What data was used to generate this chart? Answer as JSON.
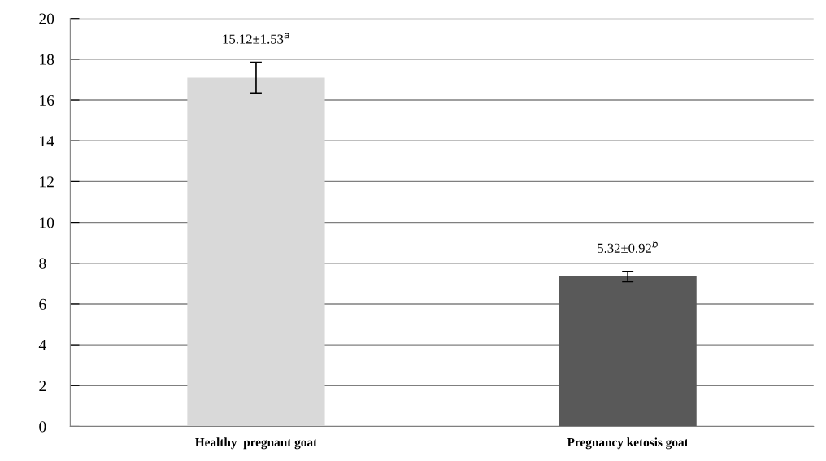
{
  "chart_data": {
    "type": "bar",
    "categories": [
      "Healthy  pregnant goat",
      "Pregnancy ketosis goat"
    ],
    "values": [
      17.1,
      7.35
    ],
    "errors": [
      0.75,
      0.25
    ],
    "colors": [
      "#d9d9d9",
      "#595959"
    ],
    "ylim": [
      0,
      20
    ],
    "yticks": [
      0,
      2,
      4,
      6,
      8,
      10,
      12,
      14,
      16,
      18,
      20
    ],
    "grid": "y",
    "annotations": [
      {
        "text": "15.12±1.53$^{a}$",
        "x": "Healthy  pregnant goat",
        "y": 17.85
      },
      {
        "text": "5.32±0.92$^{b}$",
        "x": "Pregnancy ketosis goat",
        "y": 7.6
      }
    ]
  }
}
